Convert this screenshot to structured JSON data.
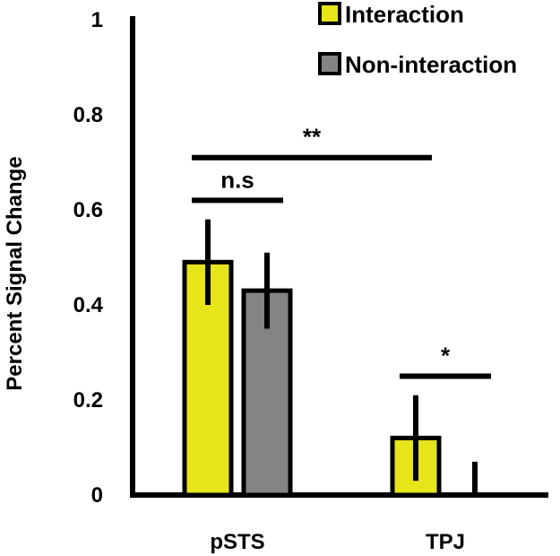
{
  "chart_data": {
    "type": "bar",
    "categories": [
      "pSTS",
      "TPJ"
    ],
    "series": [
      {
        "name": "Interaction",
        "color": "#e5e51a",
        "values": [
          0.49,
          0.12
        ],
        "errors": [
          0.09,
          0.09
        ]
      },
      {
        "name": "Non-interaction",
        "color": "#848484",
        "values": [
          0.43,
          0.0
        ],
        "errors": [
          0.08,
          0.07
        ]
      }
    ],
    "ylabel": "Percent Signal Change",
    "xlabel": "",
    "ylim": [
      0,
      1
    ],
    "yticks": [
      "0",
      "0.2",
      "0.4",
      "0.6",
      "0.8",
      "1"
    ],
    "grid": false,
    "legend": "top-right",
    "significance": [
      {
        "label": "n.s",
        "from": [
          "pSTS",
          "Interaction"
        ],
        "to": [
          "pSTS",
          "Non-interaction"
        ],
        "y": 0.62
      },
      {
        "label": "**",
        "from": [
          "pSTS",
          "Interaction"
        ],
        "to": [
          "TPJ",
          "Interaction"
        ],
        "y": 0.71
      },
      {
        "label": "*",
        "from": [
          "TPJ",
          "Interaction"
        ],
        "to": [
          "TPJ",
          "Non-interaction"
        ],
        "y": 0.25
      }
    ]
  }
}
